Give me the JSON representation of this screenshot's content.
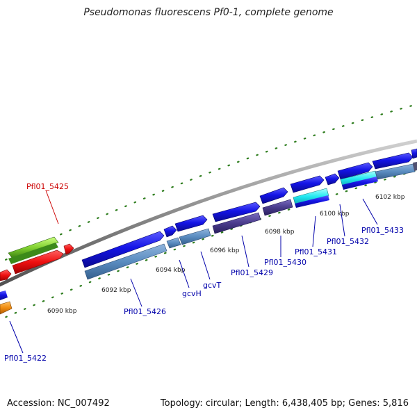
{
  "title": "Pseudomonas fluorescens Pf0-1, complete genome",
  "footer": {
    "accession": "Accession: NC_007492",
    "summary": "Topology: circular; Length: 6,438,405 bp; Genes: 5,816"
  },
  "ruler_ticks": [
    "6090 kbp",
    "6092 kbp",
    "6094 kbp",
    "6096 kbp",
    "6098 kbp",
    "6100 kbp",
    "6102 kbp"
  ],
  "gene_labels": [
    "Pfl01_5425",
    "Pfl01_5422",
    "Pfl01_5426",
    "gcvH",
    "gcvT",
    "Pfl01_5429",
    "Pfl01_5430",
    "Pfl01_5431",
    "Pfl01_5432",
    "Pfl01_5433"
  ],
  "colors": {
    "backbone": "#8a8a8a",
    "ticks": "#2e7d1e",
    "cds_forward": "#1010e0",
    "feature_steel": "#5a8cc0",
    "feature_purple": "#4a3c8c",
    "feature_cyan": "#20e8f0",
    "feature_red": "#ee1010",
    "feature_green": "#60c020",
    "feature_orange": "#f08c10",
    "label_blue": "#0000aa",
    "label_red": "#cc0000"
  }
}
